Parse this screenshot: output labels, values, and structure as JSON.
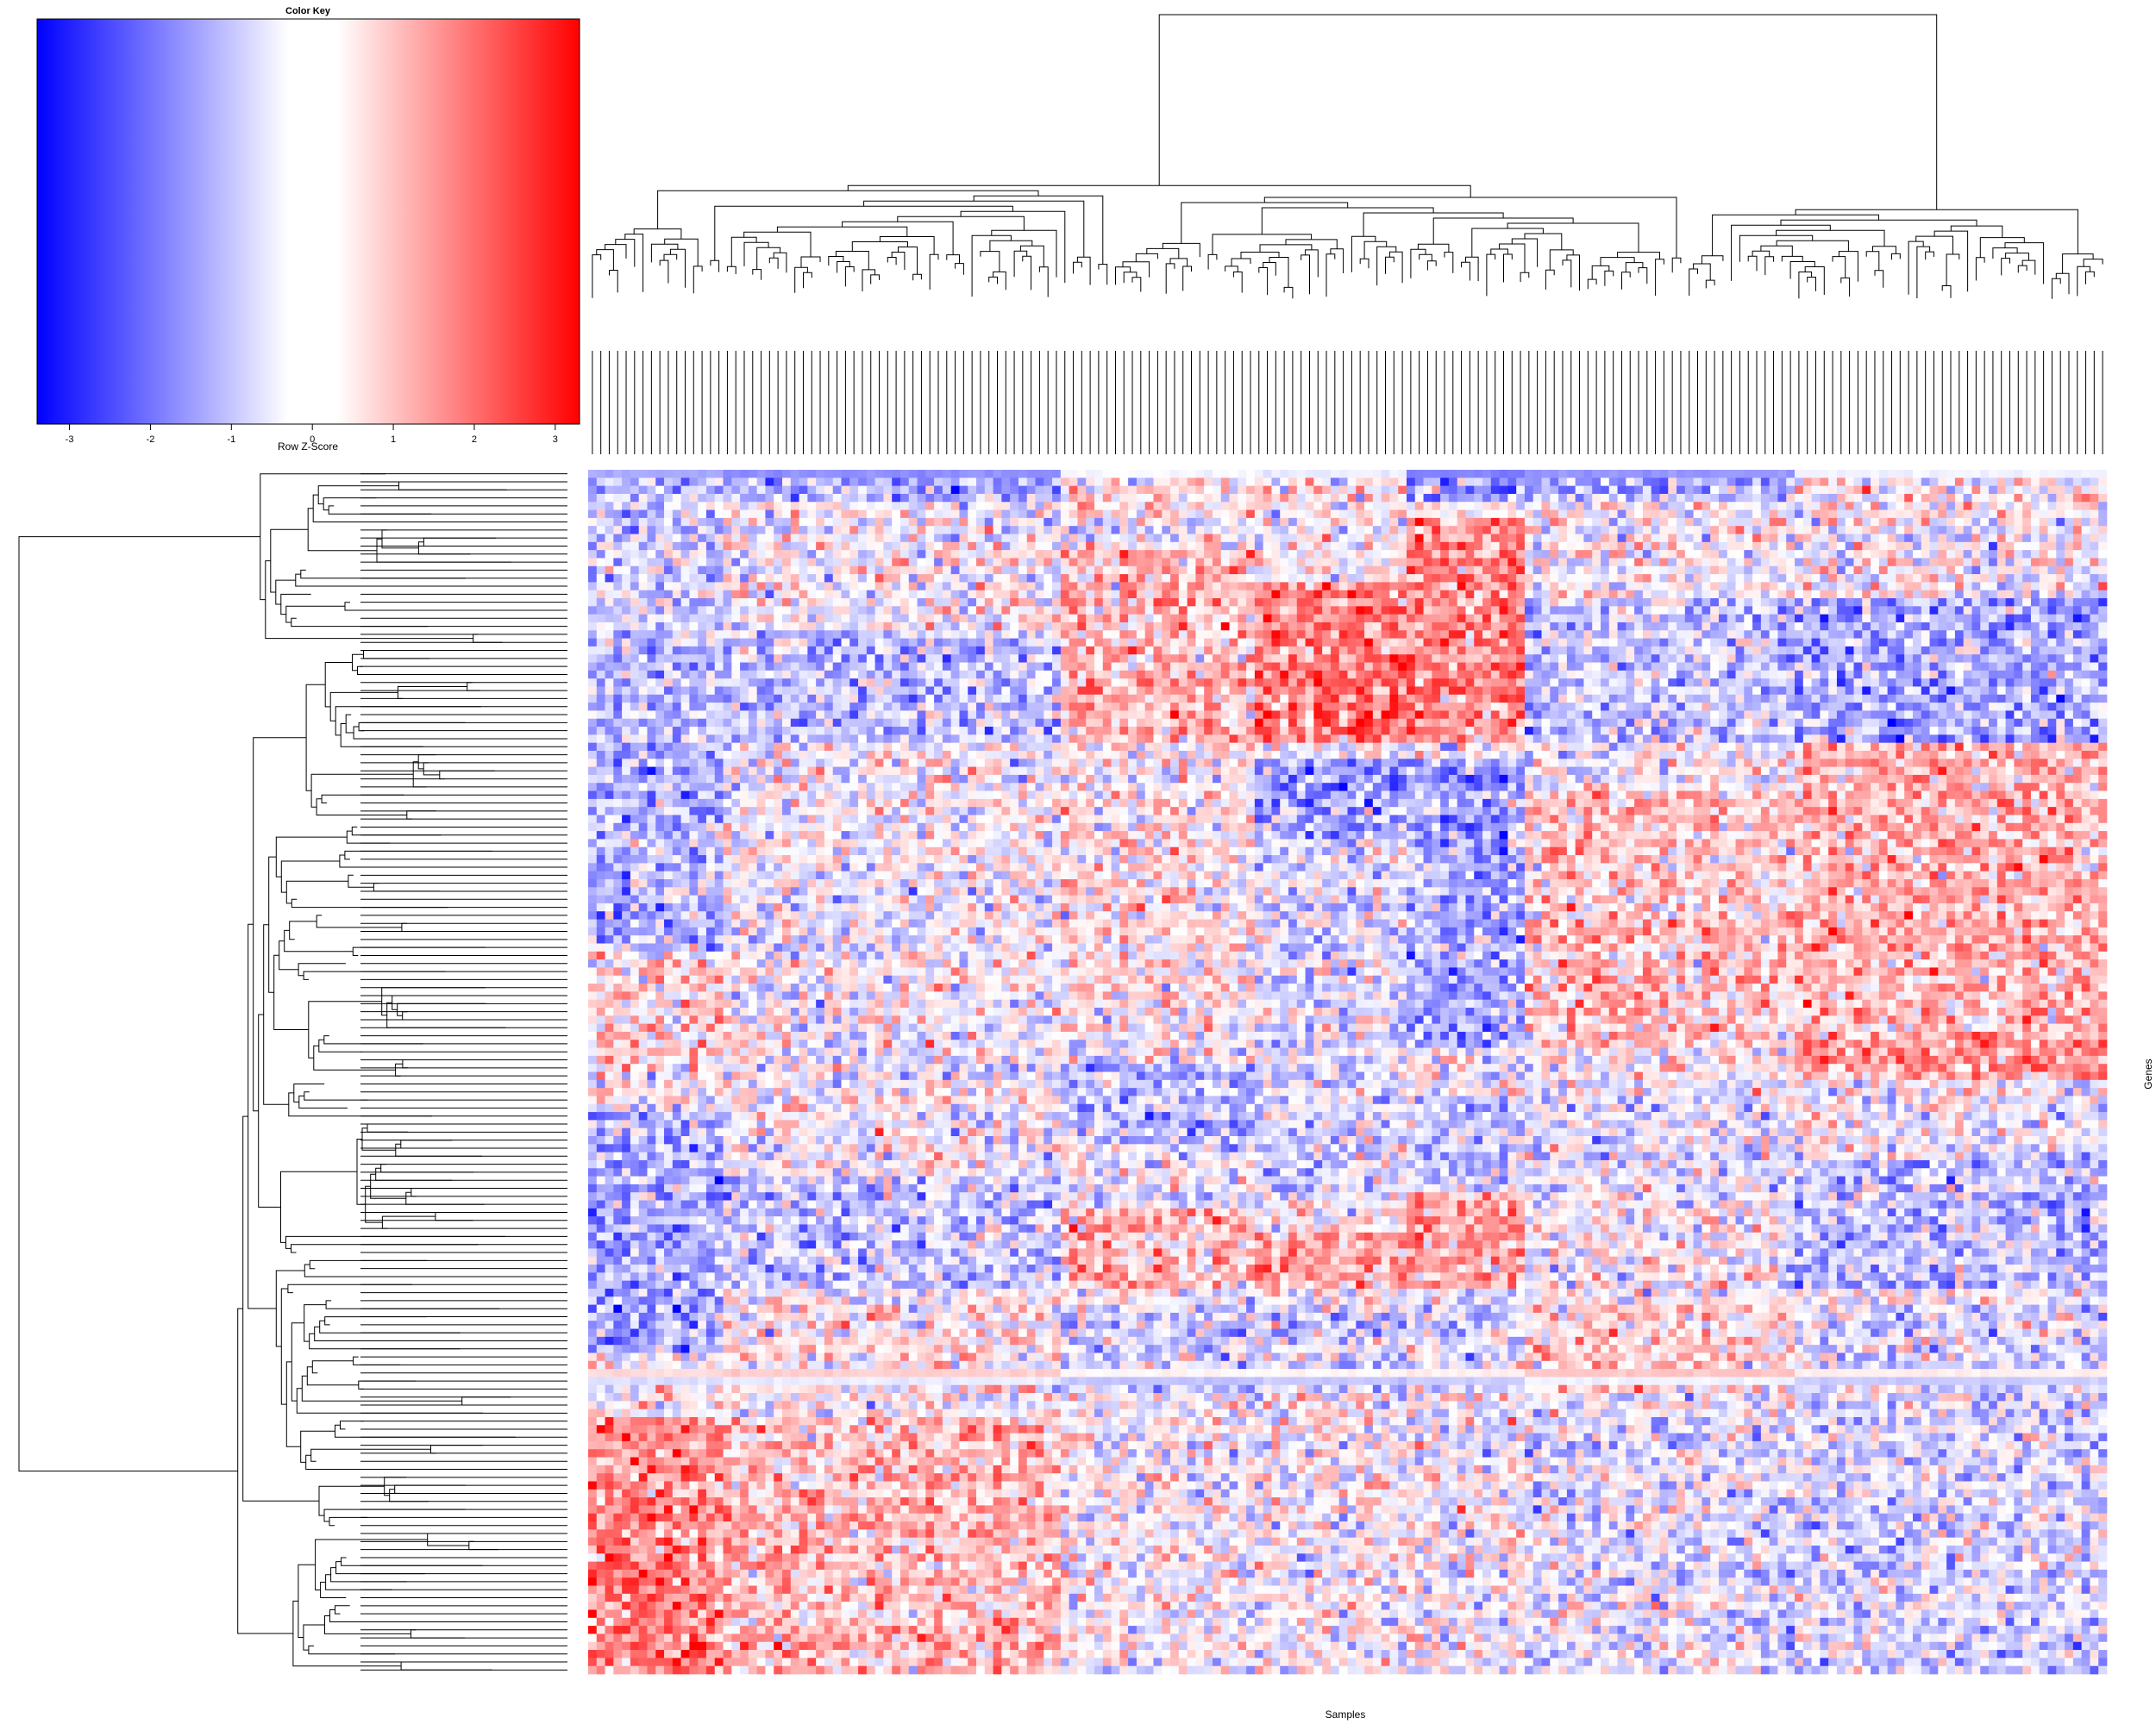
{
  "chart_data": [
    {
      "type": "line",
      "role": "color-key",
      "title": "Color Key",
      "xlabel": "Row Z-Score",
      "ylabel": "",
      "xlim": [
        -3.4,
        3.3
      ],
      "x_ticks": [
        -3,
        -2,
        -1,
        0,
        1,
        2,
        3
      ],
      "x_tick_labels": [
        "-3",
        "-2",
        "-1",
        "0",
        "1",
        "2",
        "3"
      ],
      "gradient": [
        {
          "value": -3.4,
          "color": "#0000ff"
        },
        {
          "value": -0.3,
          "color": "#ffffff"
        },
        {
          "value": 0.3,
          "color": "#ffffff"
        },
        {
          "value": 3.3,
          "color": "#ff0000"
        }
      ]
    },
    {
      "type": "heatmap",
      "role": "clustered-heatmap",
      "title": "",
      "xlabel": "Samples",
      "ylabel": "Genes",
      "n_columns": 180,
      "n_rows": 150,
      "value_range": [
        -3.4,
        3.3
      ],
      "colormap": {
        "low": "#0000ff",
        "mid": "#ffffff",
        "high": "#ff0000"
      },
      "column_dendrogram": true,
      "row_dendrogram": true,
      "column_groups": [
        {
          "from": 0,
          "to": 15,
          "rows": [
            [
              0,
              20,
              -0.6
            ],
            [
              20,
              60,
              -0.9
            ],
            [
              60,
              75,
              0.4
            ],
            [
              80,
              110,
              -1.1
            ],
            [
              118,
              150,
              1.6
            ]
          ]
        },
        {
          "from": 16,
          "to": 55,
          "rows": [
            [
              0,
              4,
              -1.0
            ],
            [
              20,
              34,
              -0.8
            ],
            [
              88,
              102,
              -0.7
            ],
            [
              104,
              115,
              0.3
            ],
            [
              118,
              150,
              0.9
            ]
          ]
        },
        {
          "from": 56,
          "to": 78,
          "rows": [
            [
              0,
              6,
              0.6
            ],
            [
              10,
              34,
              0.9
            ],
            [
              40,
              70,
              0.3
            ],
            [
              74,
              84,
              -0.9
            ],
            [
              92,
              102,
              0.8
            ],
            [
              104,
              115,
              -0.6
            ]
          ]
        },
        {
          "from": 79,
          "to": 96,
          "rows": [
            [
              0,
              4,
              0.4
            ],
            [
              14,
              34,
              1.8
            ],
            [
              36,
              46,
              -1.3
            ],
            [
              46,
              90,
              -0.4
            ],
            [
              95,
              102,
              1.2
            ],
            [
              105,
              115,
              -0.5
            ]
          ]
        },
        {
          "from": 97,
          "to": 110,
          "rows": [
            [
              0,
              4,
              -1.2
            ],
            [
              6,
              34,
              1.6
            ],
            [
              36,
              72,
              -1.1
            ],
            [
              78,
              90,
              -0.7
            ],
            [
              90,
              102,
              1.3
            ],
            [
              104,
              115,
              -0.4
            ]
          ]
        },
        {
          "from": 111,
          "to": 142,
          "rows": [
            [
              0,
              4,
              -0.9
            ],
            [
              16,
              34,
              -0.7
            ],
            [
              40,
              72,
              0.7
            ],
            [
              76,
              90,
              -0.3
            ],
            [
              104,
              115,
              0.5
            ],
            [
              118,
              150,
              -0.3
            ]
          ]
        },
        {
          "from": 143,
          "to": 179,
          "rows": [
            [
              0,
              4,
              0.5
            ],
            [
              16,
              34,
              -1.1
            ],
            [
              34,
              70,
              1.0
            ],
            [
              70,
              76,
              1.3
            ],
            [
              86,
              102,
              -0.8
            ],
            [
              104,
              150,
              -0.4
            ]
          ]
        }
      ],
      "row_offsets": [
        {
          "row": 0,
          "value": -1.2,
          "note": "solid band"
        },
        {
          "row": 1,
          "value": -0.8
        },
        {
          "row": 112,
          "value": 0.9
        },
        {
          "row": 113,
          "value": -0.9
        }
      ]
    }
  ]
}
